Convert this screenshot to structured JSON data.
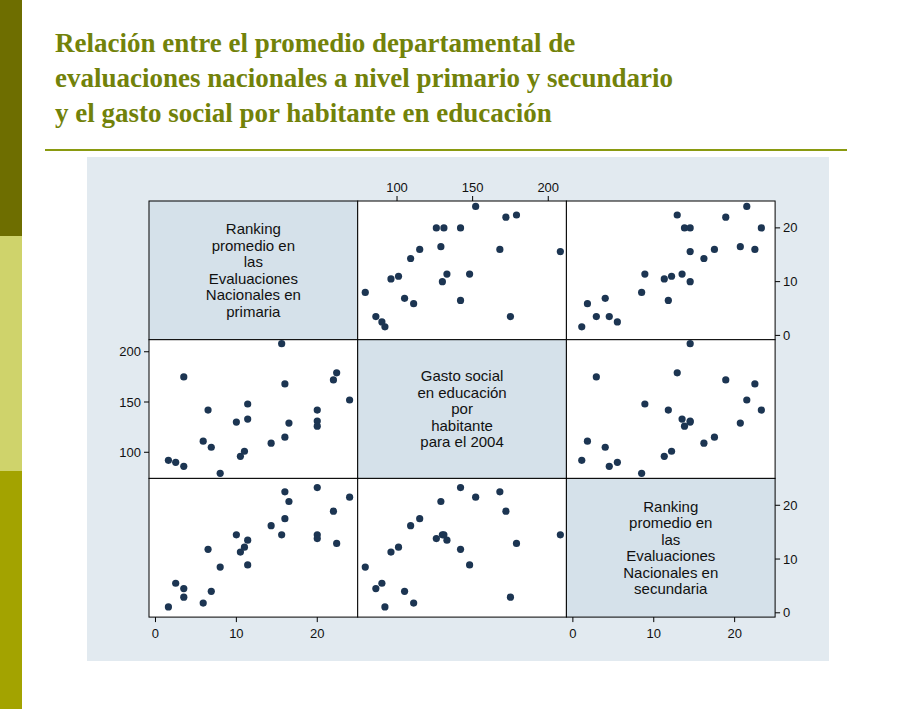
{
  "chart_data": {
    "type": "scatter_matrix",
    "title": [
      "Relación entre el promedio departamental de",
      "evaluaciones nacionales a nivel primario y secundario",
      "y el gasto social por habitante en educación"
    ],
    "color": "#1c3552",
    "marker": "circle",
    "variables": [
      {
        "label": [
          "Ranking",
          "promedio en",
          "las",
          "Evaluaciones",
          "Nacionales en",
          "primaria"
        ],
        "lim": [
          -0.8,
          25
        ],
        "ticks": [
          0,
          10,
          20
        ],
        "values": [
          1.6,
          2.5,
          3.5,
          3.5,
          5.9,
          6.5,
          6.9,
          8,
          10,
          10.5,
          11,
          11.4,
          11.4,
          14.3,
          15.6,
          16,
          16,
          16.5,
          20,
          20,
          20,
          22,
          22.4,
          24
        ]
      },
      {
        "label": [
          "Gasto social",
          "en educación",
          "por",
          "habitante",
          "para el 2004"
        ],
        "lim": [
          74,
          212
        ],
        "ticks": [
          100,
          150,
          200
        ],
        "values": [
          92,
          90,
          86,
          175,
          111,
          142,
          105,
          79,
          130,
          96,
          101,
          133,
          148,
          109,
          208,
          115,
          168,
          129,
          142,
          131,
          126,
          172,
          179,
          152
        ]
      },
      {
        "label": [
          "Ranking",
          "promedio en",
          "las",
          "Evaluaciones",
          "Nacionales en",
          "secundaria"
        ],
        "lim": [
          -0.8,
          25
        ],
        "ticks": [
          0,
          10,
          20
        ],
        "values": [
          1.1,
          5.5,
          4.5,
          2.9,
          1.8,
          11.8,
          4,
          8.5,
          14.5,
          11.3,
          12.2,
          13.5,
          8.9,
          16.2,
          14.5,
          17.5,
          22.5,
          20.7,
          23.3,
          14.5,
          13.8,
          18.9,
          12.9,
          21.5
        ]
      }
    ]
  }
}
